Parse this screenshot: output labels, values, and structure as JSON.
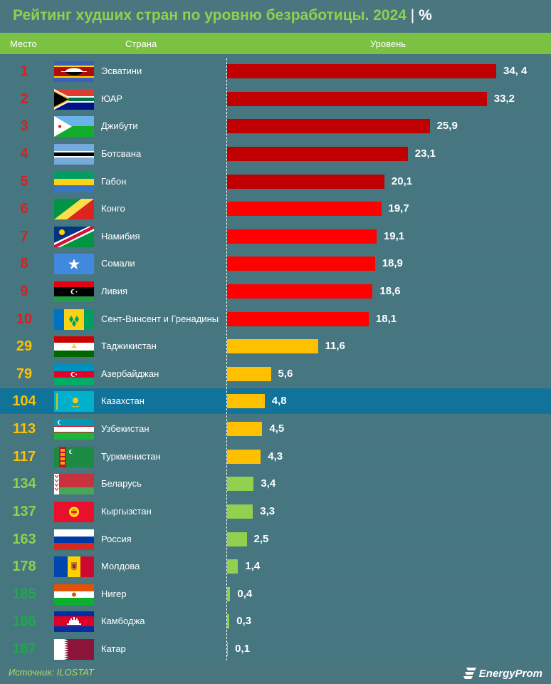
{
  "header": {
    "title": "Рейтинг худших стран по уровню безработицы. 2024",
    "title_separator": "|",
    "title_unit": "%",
    "col_rank": "Место",
    "col_country": "Страна",
    "col_level": "Уровень"
  },
  "footer": {
    "source": "Источник: ILOSTAT",
    "logo_text": "EnergyProm"
  },
  "colors": {
    "dark_red": "#c00000",
    "red": "#ff0000",
    "yellow": "#ffc000",
    "green": "#92d050",
    "highlight_row": "#11739a",
    "rank_red": "#d92020",
    "rank_yellow": "#ffc000",
    "rank_green": "#8fd14f",
    "rank_deep_green": "#1fa84d"
  },
  "chart_data": {
    "type": "bar",
    "orientation": "horizontal",
    "title": "Рейтинг худших стран по уровню безработицы. 2024",
    "xlabel": "Уровень",
    "unit": "%",
    "categories": [
      "Эсватини",
      "ЮАР",
      "Джибути",
      "Ботсвана",
      "Габон",
      "Конго",
      "Намибия",
      "Сомали",
      "Ливия",
      "Сент-Винсент и Гренадины",
      "Таджикистан",
      "Азербайджан",
      "Казахстан",
      "Узбекистан",
      "Туркменистан",
      "Беларусь",
      "Кыргызстан",
      "Россия",
      "Молдова",
      "Нигер",
      "Камбоджа",
      "Катар"
    ],
    "ranks": [
      "1",
      "2",
      "3",
      "4",
      "5",
      "6",
      "7",
      "8",
      "9",
      "10",
      "29",
      "79",
      "104",
      "113",
      "117",
      "134",
      "137",
      "163",
      "178",
      "185",
      "186",
      "187"
    ],
    "values": [
      34.4,
      33.2,
      25.9,
      23.1,
      20.1,
      19.7,
      19.1,
      18.9,
      18.6,
      18.1,
      11.6,
      5.6,
      4.8,
      4.5,
      4.3,
      3.4,
      3.3,
      2.5,
      1.4,
      0.4,
      0.3,
      0.1
    ],
    "value_labels": [
      "34, 4",
      "33,2",
      "25,9",
      "23,1",
      "20,1",
      "19,7",
      "19,1",
      "18,9",
      "18,6",
      "18,1",
      "11,6",
      "5,6",
      "4,8",
      "4,5",
      "4,3",
      "3,4",
      "3,3",
      "2,5",
      "1,4",
      "0,4",
      "0,3",
      "0,1"
    ],
    "bar_colors": [
      "dark_red",
      "dark_red",
      "dark_red",
      "dark_red",
      "dark_red",
      "red",
      "red",
      "red",
      "red",
      "red",
      "yellow",
      "yellow",
      "yellow",
      "yellow",
      "yellow",
      "green",
      "green",
      "green",
      "green",
      "green",
      "green",
      "green"
    ],
    "rank_colors": [
      "rank_red",
      "rank_red",
      "rank_red",
      "rank_red",
      "rank_red",
      "rank_red",
      "rank_red",
      "rank_red",
      "rank_red",
      "rank_red",
      "rank_yellow",
      "rank_yellow",
      "rank_yellow",
      "rank_yellow",
      "rank_yellow",
      "rank_green",
      "rank_green",
      "rank_green",
      "rank_green",
      "rank_deep_green",
      "rank_deep_green",
      "rank_deep_green"
    ],
    "flag_icons": [
      "eswatini-flag-icon",
      "south-africa-flag-icon",
      "djibouti-flag-icon",
      "botswana-flag-icon",
      "gabon-flag-icon",
      "congo-flag-icon",
      "namibia-flag-icon",
      "somalia-flag-icon",
      "libya-flag-icon",
      "saint-vincent-flag-icon",
      "tajikistan-flag-icon",
      "azerbaijan-flag-icon",
      "kazakhstan-flag-icon",
      "uzbekistan-flag-icon",
      "turkmenistan-flag-icon",
      "belarus-flag-icon",
      "kyrgyzstan-flag-icon",
      "russia-flag-icon",
      "moldova-flag-icon",
      "niger-flag-icon",
      "cambodia-flag-icon",
      "qatar-flag-icon"
    ],
    "highlight_category": "Казахстан",
    "xlim": [
      0,
      34.4
    ]
  }
}
